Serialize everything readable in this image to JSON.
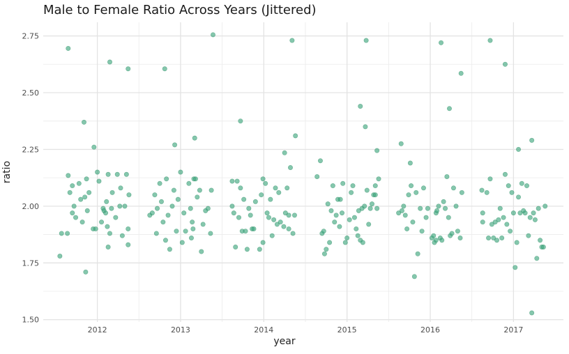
{
  "chart_data": {
    "type": "scatter",
    "title": "Male to Female Ratio Across Years (Jittered)",
    "xlabel": "year",
    "ylabel": "ratio",
    "x_ticks": [
      "2012",
      "2013",
      "2014",
      "2015",
      "2016",
      "2017"
    ],
    "y_ticks": [
      "1.50",
      "1.75",
      "2.00",
      "2.25",
      "2.50",
      "2.75"
    ],
    "xlim": [
      2011.35,
      2017.6
    ],
    "ylim": [
      1.49,
      2.81
    ],
    "grid": true,
    "point_color": "#3aa57a",
    "points": [
      {
        "x": 2011.65,
        "y": 2.695
      },
      {
        "x": 2011.84,
        "y": 2.37
      },
      {
        "x": 2012.15,
        "y": 2.635
      },
      {
        "x": 2012.37,
        "y": 2.605
      },
      {
        "x": 2011.55,
        "y": 1.78
      },
      {
        "x": 2011.86,
        "y": 1.71
      },
      {
        "x": 2011.57,
        "y": 1.88
      },
      {
        "x": 2011.64,
        "y": 1.88
      },
      {
        "x": 2011.96,
        "y": 2.26
      },
      {
        "x": 2011.65,
        "y": 2.135
      },
      {
        "x": 2011.67,
        "y": 2.06
      },
      {
        "x": 2011.7,
        "y": 2.09
      },
      {
        "x": 2011.72,
        "y": 2.0
      },
      {
        "x": 2011.7,
        "y": 1.97
      },
      {
        "x": 2011.74,
        "y": 1.95
      },
      {
        "x": 2011.78,
        "y": 2.1
      },
      {
        "x": 2011.8,
        "y": 2.03
      },
      {
        "x": 2011.82,
        "y": 1.93
      },
      {
        "x": 2011.85,
        "y": 2.04
      },
      {
        "x": 2011.87,
        "y": 2.12
      },
      {
        "x": 2011.88,
        "y": 1.98
      },
      {
        "x": 2011.9,
        "y": 2.06
      },
      {
        "x": 2011.95,
        "y": 1.9
      },
      {
        "x": 2011.98,
        "y": 1.9
      },
      {
        "x": 2012.0,
        "y": 2.15
      },
      {
        "x": 2012.02,
        "y": 2.11
      },
      {
        "x": 2012.05,
        "y": 1.93
      },
      {
        "x": 2012.07,
        "y": 1.99
      },
      {
        "x": 2012.08,
        "y": 1.98
      },
      {
        "x": 2012.1,
        "y": 1.97
      },
      {
        "x": 2012.11,
        "y": 2.02
      },
      {
        "x": 2012.12,
        "y": 1.91
      },
      {
        "x": 2012.13,
        "y": 1.82
      },
      {
        "x": 2012.15,
        "y": 1.88
      },
      {
        "x": 2012.17,
        "y": 1.99
      },
      {
        "x": 2012.18,
        "y": 2.06
      },
      {
        "x": 2012.22,
        "y": 1.95
      },
      {
        "x": 2012.24,
        "y": 2.14
      },
      {
        "x": 2012.27,
        "y": 2.0
      },
      {
        "x": 2012.28,
        "y": 2.08
      },
      {
        "x": 2012.3,
        "y": 1.87
      },
      {
        "x": 2012.33,
        "y": 2.0
      },
      {
        "x": 2012.35,
        "y": 2.14
      },
      {
        "x": 2012.37,
        "y": 1.9
      },
      {
        "x": 2012.38,
        "y": 2.05
      },
      {
        "x": 2012.37,
        "y": 1.83
      },
      {
        "x": 2012.13,
        "y": 2.14
      },
      {
        "x": 2012.81,
        "y": 2.605
      },
      {
        "x": 2013.39,
        "y": 2.755
      },
      {
        "x": 2012.93,
        "y": 2.27
      },
      {
        "x": 2013.17,
        "y": 2.3
      },
      {
        "x": 2012.63,
        "y": 1.96
      },
      {
        "x": 2012.66,
        "y": 1.97
      },
      {
        "x": 2012.69,
        "y": 2.05
      },
      {
        "x": 2012.71,
        "y": 1.88
      },
      {
        "x": 2012.72,
        "y": 1.99
      },
      {
        "x": 2012.75,
        "y": 2.1
      },
      {
        "x": 2012.77,
        "y": 2.02
      },
      {
        "x": 2012.79,
        "y": 1.93
      },
      {
        "x": 2012.82,
        "y": 1.85
      },
      {
        "x": 2012.83,
        "y": 2.12
      },
      {
        "x": 2012.85,
        "y": 1.96
      },
      {
        "x": 2012.87,
        "y": 1.81
      },
      {
        "x": 2012.9,
        "y": 2.0
      },
      {
        "x": 2012.92,
        "y": 2.07
      },
      {
        "x": 2012.95,
        "y": 1.89
      },
      {
        "x": 2012.97,
        "y": 2.03
      },
      {
        "x": 2013.0,
        "y": 2.15
      },
      {
        "x": 2013.02,
        "y": 1.84
      },
      {
        "x": 2013.04,
        "y": 1.97
      },
      {
        "x": 2013.06,
        "y": 1.89
      },
      {
        "x": 2013.1,
        "y": 2.1
      },
      {
        "x": 2013.12,
        "y": 1.99
      },
      {
        "x": 2013.14,
        "y": 1.93
      },
      {
        "x": 2013.15,
        "y": 1.9
      },
      {
        "x": 2013.16,
        "y": 2.12
      },
      {
        "x": 2013.18,
        "y": 2.12
      },
      {
        "x": 2013.2,
        "y": 2.04
      },
      {
        "x": 2013.23,
        "y": 2.07
      },
      {
        "x": 2013.25,
        "y": 1.8
      },
      {
        "x": 2013.27,
        "y": 1.92
      },
      {
        "x": 2013.3,
        "y": 1.98
      },
      {
        "x": 2013.33,
        "y": 1.99
      },
      {
        "x": 2013.36,
        "y": 1.88
      },
      {
        "x": 2013.37,
        "y": 2.07
      },
      {
        "x": 2013.13,
        "y": 1.86
      },
      {
        "x": 2013.72,
        "y": 2.375
      },
      {
        "x": 2014.34,
        "y": 2.73
      },
      {
        "x": 2014.38,
        "y": 2.31
      },
      {
        "x": 2014.25,
        "y": 2.235
      },
      {
        "x": 2013.62,
        "y": 2.11
      },
      {
        "x": 2013.62,
        "y": 2.0
      },
      {
        "x": 2013.64,
        "y": 1.97
      },
      {
        "x": 2013.66,
        "y": 1.82
      },
      {
        "x": 2013.68,
        "y": 2.11
      },
      {
        "x": 2013.7,
        "y": 1.95
      },
      {
        "x": 2013.72,
        "y": 2.08
      },
      {
        "x": 2013.74,
        "y": 1.89
      },
      {
        "x": 2013.76,
        "y": 2.03
      },
      {
        "x": 2013.78,
        "y": 1.89
      },
      {
        "x": 2013.8,
        "y": 1.81
      },
      {
        "x": 2013.82,
        "y": 1.99
      },
      {
        "x": 2013.84,
        "y": 1.96
      },
      {
        "x": 2013.86,
        "y": 1.9
      },
      {
        "x": 2013.88,
        "y": 1.9
      },
      {
        "x": 2013.9,
        "y": 2.02
      },
      {
        "x": 2013.95,
        "y": 1.81
      },
      {
        "x": 2013.97,
        "y": 2.05
      },
      {
        "x": 2013.99,
        "y": 1.84
      },
      {
        "x": 2014.02,
        "y": 2.1
      },
      {
        "x": 2014.04,
        "y": 1.97
      },
      {
        "x": 2014.06,
        "y": 1.95
      },
      {
        "x": 2014.08,
        "y": 2.03
      },
      {
        "x": 2014.1,
        "y": 1.87
      },
      {
        "x": 2014.12,
        "y": 1.94
      },
      {
        "x": 2014.14,
        "y": 2.08
      },
      {
        "x": 2014.16,
        "y": 1.92
      },
      {
        "x": 2014.18,
        "y": 2.06
      },
      {
        "x": 2014.2,
        "y": 1.93
      },
      {
        "x": 2014.24,
        "y": 1.91
      },
      {
        "x": 2014.26,
        "y": 1.97
      },
      {
        "x": 2014.28,
        "y": 2.08
      },
      {
        "x": 2014.3,
        "y": 1.96
      },
      {
        "x": 2014.32,
        "y": 2.17
      },
      {
        "x": 2014.35,
        "y": 1.88
      },
      {
        "x": 2014.37,
        "y": 1.96
      },
      {
        "x": 2014.3,
        "y": 1.9
      },
      {
        "x": 2013.99,
        "y": 2.12
      },
      {
        "x": 2015.16,
        "y": 2.44
      },
      {
        "x": 2015.23,
        "y": 2.73
      },
      {
        "x": 2015.22,
        "y": 2.35
      },
      {
        "x": 2015.36,
        "y": 2.245
      },
      {
        "x": 2014.64,
        "y": 2.13
      },
      {
        "x": 2014.68,
        "y": 2.2
      },
      {
        "x": 2014.7,
        "y": 1.88
      },
      {
        "x": 2014.72,
        "y": 1.89
      },
      {
        "x": 2014.73,
        "y": 1.79
      },
      {
        "x": 2014.75,
        "y": 1.81
      },
      {
        "x": 2014.77,
        "y": 2.01
      },
      {
        "x": 2014.79,
        "y": 1.84
      },
      {
        "x": 2014.81,
        "y": 1.98
      },
      {
        "x": 2014.83,
        "y": 2.09
      },
      {
        "x": 2014.85,
        "y": 1.93
      },
      {
        "x": 2014.87,
        "y": 1.96
      },
      {
        "x": 2014.89,
        "y": 2.03
      },
      {
        "x": 2014.92,
        "y": 2.03
      },
      {
        "x": 2014.94,
        "y": 1.97
      },
      {
        "x": 2014.95,
        "y": 2.1
      },
      {
        "x": 2014.98,
        "y": 1.84
      },
      {
        "x": 2015.0,
        "y": 1.86
      },
      {
        "x": 2015.03,
        "y": 1.94
      },
      {
        "x": 2015.05,
        "y": 2.06
      },
      {
        "x": 2015.07,
        "y": 2.09
      },
      {
        "x": 2015.09,
        "y": 1.95
      },
      {
        "x": 2015.11,
        "y": 1.9
      },
      {
        "x": 2015.13,
        "y": 1.87
      },
      {
        "x": 2015.14,
        "y": 1.98
      },
      {
        "x": 2015.16,
        "y": 1.85
      },
      {
        "x": 2015.18,
        "y": 1.99
      },
      {
        "x": 2015.19,
        "y": 1.84
      },
      {
        "x": 2015.21,
        "y": 2.0
      },
      {
        "x": 2015.24,
        "y": 2.07
      },
      {
        "x": 2015.26,
        "y": 1.92
      },
      {
        "x": 2015.28,
        "y": 1.99
      },
      {
        "x": 2015.3,
        "y": 2.01
      },
      {
        "x": 2015.32,
        "y": 2.05
      },
      {
        "x": 2015.34,
        "y": 2.09
      },
      {
        "x": 2015.36,
        "y": 1.99
      },
      {
        "x": 2015.38,
        "y": 2.12
      },
      {
        "x": 2015.34,
        "y": 2.05
      },
      {
        "x": 2014.91,
        "y": 1.91
      },
      {
        "x": 2016.13,
        "y": 2.72
      },
      {
        "x": 2016.37,
        "y": 2.585
      },
      {
        "x": 2016.23,
        "y": 2.43
      },
      {
        "x": 2015.65,
        "y": 2.275
      },
      {
        "x": 2015.62,
        "y": 1.97
      },
      {
        "x": 2015.66,
        "y": 1.98
      },
      {
        "x": 2015.68,
        "y": 2.0
      },
      {
        "x": 2015.7,
        "y": 1.96
      },
      {
        "x": 2015.72,
        "y": 1.9
      },
      {
        "x": 2015.74,
        "y": 2.05
      },
      {
        "x": 2015.76,
        "y": 2.19
      },
      {
        "x": 2015.77,
        "y": 2.09
      },
      {
        "x": 2015.79,
        "y": 1.93
      },
      {
        "x": 2015.81,
        "y": 1.69
      },
      {
        "x": 2015.83,
        "y": 2.06
      },
      {
        "x": 2015.85,
        "y": 1.79
      },
      {
        "x": 2015.88,
        "y": 1.99
      },
      {
        "x": 2015.9,
        "y": 1.89
      },
      {
        "x": 2015.92,
        "y": 2.08
      },
      {
        "x": 2015.95,
        "y": 1.95
      },
      {
        "x": 2015.97,
        "y": 1.99
      },
      {
        "x": 2016.02,
        "y": 1.86
      },
      {
        "x": 2016.04,
        "y": 1.87
      },
      {
        "x": 2016.05,
        "y": 1.84
      },
      {
        "x": 2016.07,
        "y": 1.97
      },
      {
        "x": 2016.08,
        "y": 1.98
      },
      {
        "x": 2016.1,
        "y": 2.0
      },
      {
        "x": 2016.12,
        "y": 1.86
      },
      {
        "x": 2016.14,
        "y": 1.85
      },
      {
        "x": 2016.16,
        "y": 2.02
      },
      {
        "x": 2016.18,
        "y": 1.99
      },
      {
        "x": 2016.2,
        "y": 2.13
      },
      {
        "x": 2016.22,
        "y": 1.95
      },
      {
        "x": 2016.24,
        "y": 1.87
      },
      {
        "x": 2016.26,
        "y": 1.88
      },
      {
        "x": 2016.28,
        "y": 2.08
      },
      {
        "x": 2016.31,
        "y": 2.0
      },
      {
        "x": 2016.33,
        "y": 1.89
      },
      {
        "x": 2016.36,
        "y": 1.86
      },
      {
        "x": 2016.38,
        "y": 2.06
      },
      {
        "x": 2016.07,
        "y": 1.85
      },
      {
        "x": 2016.72,
        "y": 2.73
      },
      {
        "x": 2016.9,
        "y": 2.625
      },
      {
        "x": 2017.22,
        "y": 2.29
      },
      {
        "x": 2017.06,
        "y": 2.25
      },
      {
        "x": 2016.62,
        "y": 2.07
      },
      {
        "x": 2016.63,
        "y": 1.93
      },
      {
        "x": 2016.63,
        "y": 1.97
      },
      {
        "x": 2016.68,
        "y": 2.06
      },
      {
        "x": 2016.7,
        "y": 1.86
      },
      {
        "x": 2016.72,
        "y": 2.12
      },
      {
        "x": 2016.74,
        "y": 1.92
      },
      {
        "x": 2016.76,
        "y": 1.86
      },
      {
        "x": 2016.78,
        "y": 1.93
      },
      {
        "x": 2016.8,
        "y": 1.85
      },
      {
        "x": 2016.82,
        "y": 1.94
      },
      {
        "x": 2016.84,
        "y": 1.99
      },
      {
        "x": 2016.86,
        "y": 1.86
      },
      {
        "x": 2016.88,
        "y": 1.95
      },
      {
        "x": 2016.9,
        "y": 2.14
      },
      {
        "x": 2016.92,
        "y": 1.92
      },
      {
        "x": 2016.94,
        "y": 2.09
      },
      {
        "x": 2016.96,
        "y": 1.89
      },
      {
        "x": 2016.98,
        "y": 2.06
      },
      {
        "x": 2017.0,
        "y": 1.97
      },
      {
        "x": 2017.02,
        "y": 1.73
      },
      {
        "x": 2017.04,
        "y": 1.84
      },
      {
        "x": 2017.06,
        "y": 2.04
      },
      {
        "x": 2017.08,
        "y": 1.97
      },
      {
        "x": 2017.1,
        "y": 2.1
      },
      {
        "x": 2017.12,
        "y": 1.98
      },
      {
        "x": 2017.14,
        "y": 1.97
      },
      {
        "x": 2017.16,
        "y": 2.09
      },
      {
        "x": 2017.18,
        "y": 1.87
      },
      {
        "x": 2017.2,
        "y": 1.95
      },
      {
        "x": 2017.22,
        "y": 1.53
      },
      {
        "x": 2017.24,
        "y": 1.97
      },
      {
        "x": 2017.26,
        "y": 1.94
      },
      {
        "x": 2017.28,
        "y": 1.77
      },
      {
        "x": 2017.3,
        "y": 1.99
      },
      {
        "x": 2017.32,
        "y": 1.85
      },
      {
        "x": 2017.34,
        "y": 1.82
      },
      {
        "x": 2017.36,
        "y": 1.82
      },
      {
        "x": 2017.38,
        "y": 2.0
      }
    ]
  }
}
